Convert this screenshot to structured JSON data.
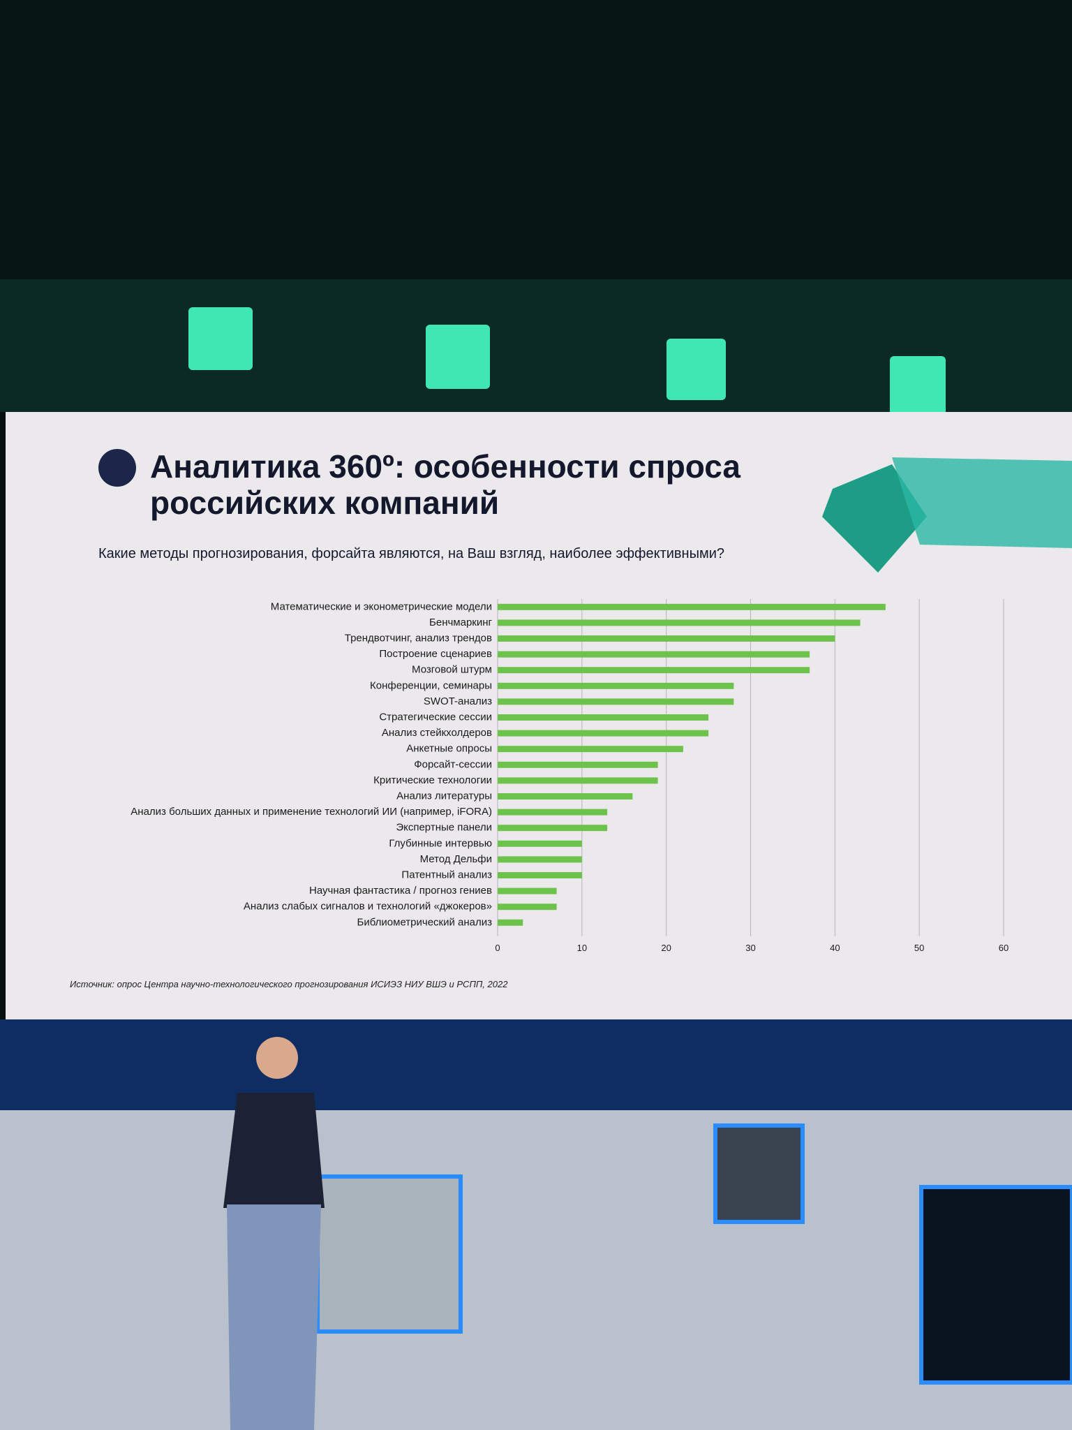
{
  "chart_data": {
    "type": "bar",
    "orientation": "horizontal",
    "title": "Аналитика 360º: особенности спроса российских компаний",
    "subtitle": "Какие методы прогнозирования, форсайта являются, на Ваш взгляд, наиболее эффективными?",
    "source": "Источник: опрос Центра научно-технологического прогнозирования ИСИЭЗ НИУ ВШЭ и РСПП, 2022",
    "categories": [
      "Математические и эконометрические модели",
      "Бенчмаркинг",
      "Трендвотчинг, анализ трендов",
      "Построение сценариев",
      "Мозговой штурм",
      "Конференции, семинары",
      "SWOT-анализ",
      "Стратегические сессии",
      "Анализ стейкхолдеров",
      "Анкетные опросы",
      "Форсайт-сессии",
      "Критические технологии",
      "Анализ литературы",
      "Анализ больших данных и применение технологий ИИ (например, iFORA)",
      "Экспертные панели",
      "Глубинные интервью",
      "Метод Дельфи",
      "Патентный анализ",
      "Научная фантастика / прогноз гениев",
      "Анализ слабых сигналов и технологий «джокеров»",
      "Библиометрический анализ"
    ],
    "values": [
      46,
      43,
      40,
      37,
      37,
      28,
      28,
      25,
      25,
      22,
      19,
      19,
      16,
      13,
      13,
      10,
      10,
      10,
      7,
      7,
      3
    ],
    "color": "#6cc24a",
    "xlim": [
      0,
      60
    ],
    "xticks": [
      0,
      10,
      20,
      30,
      40,
      50,
      60
    ],
    "grid": true
  }
}
